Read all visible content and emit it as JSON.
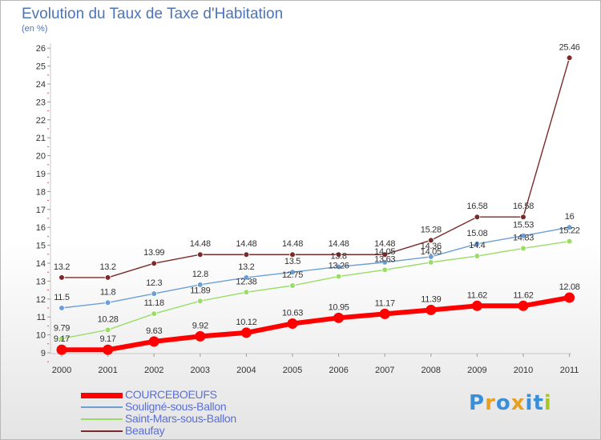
{
  "chart_data": {
    "type": "line",
    "title": "Evolution du Taux de Taxe d'Habitation",
    "subtitle": "(en %)",
    "x": [
      "2000",
      "2001",
      "2002",
      "2003",
      "2004",
      "2005",
      "2006",
      "2007",
      "2008",
      "2009",
      "2010",
      "2011"
    ],
    "ylim": [
      9,
      26
    ],
    "yticks": [
      9,
      10,
      11,
      12,
      13,
      14,
      15,
      16,
      17,
      18,
      19,
      20,
      21,
      22,
      23,
      24,
      25,
      26
    ],
    "grid": false,
    "legend_position": "bottom-left",
    "series": [
      {
        "name": "COURCEBOEUFS",
        "color": "#ff0000",
        "values": [
          9.17,
          9.17,
          9.63,
          9.92,
          10.12,
          10.63,
          10.95,
          11.17,
          11.39,
          11.62,
          11.62,
          12.08
        ],
        "labels": [
          "9.17",
          "9.17",
          "9.63",
          "9.92",
          "10.12",
          "10.63",
          "10.95",
          "11.17",
          "11.39",
          "11.62",
          "11.62",
          "12.08"
        ]
      },
      {
        "name": "Souligné-sous-Ballon",
        "color": "#6c9fd6",
        "values": [
          11.5,
          11.8,
          12.3,
          12.8,
          13.2,
          13.5,
          13.8,
          14.05,
          14.36,
          15.08,
          15.53,
          16
        ],
        "labels": [
          "11.5",
          "11.8",
          "12.3",
          "12.8",
          "13.2",
          "13.5",
          "13.8",
          "14.05",
          "14.36",
          "15.08",
          "15.53",
          "16"
        ]
      },
      {
        "name": "Saint-Mars-sous-Ballon",
        "color": "#99dd66",
        "values": [
          9.79,
          10.28,
          11.18,
          11.89,
          12.38,
          12.75,
          13.26,
          13.63,
          14.05,
          14.4,
          14.83,
          15.22
        ],
        "labels": [
          "9.79",
          "10.28",
          "11.18",
          "11.89",
          "12.38",
          "12.75",
          "13.26",
          "13.63",
          "14.05",
          "14.4",
          "14.83",
          "15.22"
        ]
      },
      {
        "name": "Beaufay",
        "color": "#7a2a2a",
        "values": [
          13.2,
          13.2,
          13.99,
          14.48,
          14.48,
          14.48,
          14.48,
          14.48,
          15.28,
          16.58,
          16.58,
          25.46
        ],
        "labels": [
          "13.2",
          "13.2",
          "13.99",
          "14.48",
          "14.48",
          "14.48",
          "14.48",
          "14.48",
          "15.28",
          "16.58",
          "16.58",
          "25.46"
        ]
      }
    ]
  },
  "logo": {
    "text": "Proxiti",
    "letters": [
      "P",
      "r",
      "o",
      "x",
      "i",
      "t",
      "i"
    ],
    "colors": [
      "#3a8fd8",
      "#e8a020",
      "#3a8fd8",
      "#e8a020",
      "#3a8fd8",
      "#3a8fd8",
      "#a8c820"
    ]
  }
}
